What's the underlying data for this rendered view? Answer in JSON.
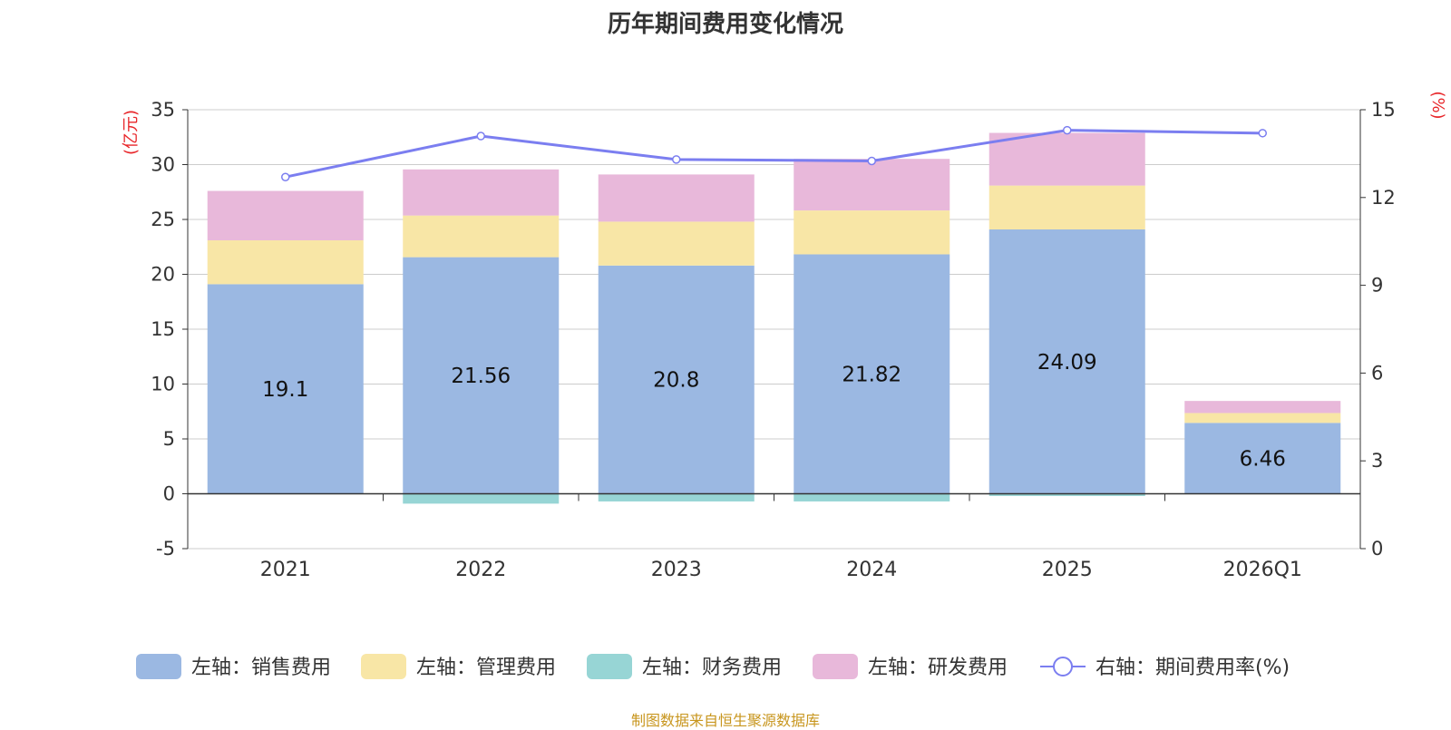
{
  "chart_data": {
    "type": "bar",
    "title": "历年期间费用变化情况",
    "categories": [
      "2021",
      "2022",
      "2023",
      "2024",
      "2025",
      "2026Q1"
    ],
    "left_axis": {
      "unit_label": "(亿元)",
      "ylim": [
        -5,
        35
      ],
      "ticks": [
        -5,
        0,
        5,
        10,
        15,
        20,
        25,
        30,
        35
      ]
    },
    "right_axis": {
      "unit_label": "(%)",
      "ylim": [
        0,
        15
      ],
      "ticks": [
        0,
        3,
        6,
        9,
        12,
        15
      ]
    },
    "series": [
      {
        "name": "左轴：销售费用",
        "key": "sales",
        "color": "#9bb8e2",
        "values": [
          19.1,
          21.56,
          20.8,
          21.82,
          24.09,
          6.46
        ],
        "labels": [
          "19.1",
          "21.56",
          "20.8",
          "21.82",
          "24.09",
          "6.46"
        ]
      },
      {
        "name": "左轴：管理费用",
        "key": "admin",
        "color": "#f8e6a6",
        "values": [
          4.0,
          3.8,
          4.0,
          4.0,
          4.0,
          0.9
        ]
      },
      {
        "name": "左轴：财务费用",
        "key": "finance",
        "color": "#97d5d5",
        "values": [
          0,
          -0.9,
          -0.7,
          -0.7,
          -0.2,
          0
        ]
      },
      {
        "name": "左轴：研发费用",
        "key": "rd",
        "color": "#e8b8da",
        "values": [
          4.5,
          4.2,
          4.3,
          4.7,
          4.8,
          1.1
        ]
      },
      {
        "name": "右轴：期间费用率(%)",
        "key": "rate",
        "color": "#7b7ef0",
        "type": "line",
        "axis": "right",
        "values": [
          12.7,
          14.1,
          13.3,
          13.25,
          14.3,
          14.2
        ]
      }
    ]
  },
  "source_text": "制图数据来自恒生聚源数据库"
}
